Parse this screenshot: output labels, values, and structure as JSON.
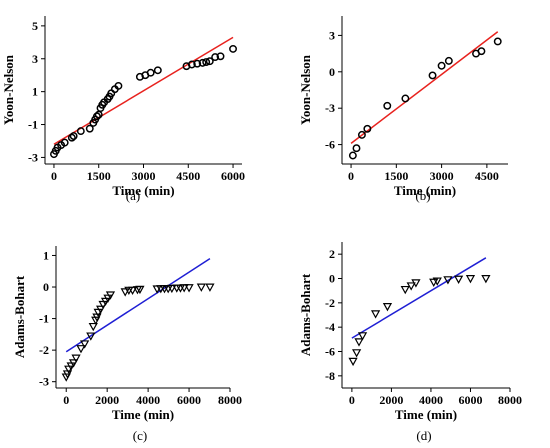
{
  "chart_data": [
    {
      "panel_label": "(a)",
      "type": "scatter",
      "xlabel": "Time (min)",
      "ylabel": "Yoon-Nelson",
      "xlim": [
        -300,
        6300
      ],
      "ylim": [
        -3.4,
        5.6
      ],
      "xticks": [
        0,
        1500,
        3000,
        4500,
        6000
      ],
      "yticks": [
        -3,
        -1,
        1,
        3,
        5
      ],
      "marker": "circle",
      "fit_color": "#e8221e",
      "series": [
        {
          "x": [
            0,
            60,
            120,
            240,
            360,
            600,
            660,
            900,
            1200,
            1320,
            1380,
            1440,
            1500,
            1560,
            1620,
            1680,
            1800,
            1860,
            1920,
            2040,
            2160,
            2880,
            3060,
            3240,
            3480,
            4440,
            4620,
            4800,
            4980,
            5100,
            5220,
            5400,
            5580,
            6000
          ],
          "y": [
            -2.8,
            -2.6,
            -2.4,
            -2.25,
            -2.1,
            -1.8,
            -1.7,
            -1.4,
            -1.25,
            -0.9,
            -0.7,
            -0.5,
            -0.4,
            0.0,
            0.2,
            0.35,
            0.55,
            0.7,
            0.9,
            1.15,
            1.35,
            1.9,
            2.0,
            2.15,
            2.3,
            2.55,
            2.65,
            2.7,
            2.75,
            2.8,
            2.85,
            3.1,
            3.15,
            3.6
          ]
        }
      ],
      "fit": {
        "x": [
          0,
          6000
        ],
        "y": [
          -2.2,
          4.3
        ]
      }
    },
    {
      "panel_label": "(b)",
      "type": "scatter",
      "xlabel": "Time (min)",
      "ylabel": "Yoon-Nelson",
      "xlim": [
        -300,
        5200
      ],
      "ylim": [
        -7.6,
        4.6
      ],
      "xticks": [
        0,
        1500,
        3000,
        4500
      ],
      "yticks": [
        -6,
        -3,
        0,
        3
      ],
      "marker": "circle",
      "fit_color": "#e8221e",
      "series": [
        {
          "x": [
            60,
            180,
            360,
            540,
            1200,
            1800,
            2700,
            3000,
            3240,
            4140,
            4320,
            4860
          ],
          "y": [
            -6.9,
            -6.3,
            -5.2,
            -4.7,
            -2.8,
            -2.2,
            -0.3,
            0.5,
            0.9,
            1.5,
            1.7,
            2.5
          ]
        }
      ],
      "fit": {
        "x": [
          0,
          4860
        ],
        "y": [
          -5.9,
          3.3
        ]
      }
    },
    {
      "panel_label": "(c)",
      "type": "scatter",
      "xlabel": "Time (min)",
      "ylabel": "Adams-Bohart",
      "xlim": [
        -500,
        8000
      ],
      "ylim": [
        -3.2,
        1.3
      ],
      "xticks": [
        0,
        2000,
        4000,
        6000,
        8000
      ],
      "yticks": [
        -3,
        -2,
        -1,
        0,
        1
      ],
      "marker": "triangle-down",
      "fit_color": "#1f1fd4",
      "series": [
        {
          "x": [
            0,
            60,
            120,
            240,
            360,
            480,
            720,
            900,
            1200,
            1320,
            1440,
            1500,
            1560,
            1680,
            1800,
            1920,
            2040,
            2160,
            2880,
            3060,
            3240,
            3480,
            3600,
            4440,
            4620,
            4800,
            4980,
            5160,
            5400,
            5580,
            5760,
            6000,
            6600,
            7020
          ],
          "y": [
            -2.85,
            -2.75,
            -2.6,
            -2.5,
            -2.4,
            -2.25,
            -1.95,
            -1.8,
            -1.55,
            -1.25,
            -1.05,
            -0.95,
            -0.8,
            -0.7,
            -0.55,
            -0.45,
            -0.35,
            -0.25,
            -0.15,
            -0.1,
            -0.1,
            -0.08,
            -0.07,
            -0.06,
            -0.05,
            -0.05,
            -0.05,
            -0.04,
            -0.03,
            -0.03,
            -0.02,
            -0.02,
            0.0,
            0.0
          ]
        }
      ],
      "fit": {
        "x": [
          0,
          7020
        ],
        "y": [
          -2.05,
          0.9
        ]
      }
    },
    {
      "panel_label": "(d)",
      "type": "scatter",
      "xlabel": "Time (min)",
      "ylabel": "Adams-Bohart",
      "xlim": [
        -500,
        8000
      ],
      "ylim": [
        -9,
        3
      ],
      "xticks": [
        0,
        2000,
        4000,
        6000,
        8000
      ],
      "yticks": [
        -8,
        -6,
        -4,
        -2,
        0,
        2
      ],
      "marker": "triangle-down",
      "fit_color": "#1f1fd4",
      "series": [
        {
          "x": [
            60,
            240,
            360,
            540,
            1200,
            1800,
            2700,
            3000,
            3240,
            4140,
            4320,
            4860,
            5400,
            6000,
            6780
          ],
          "y": [
            -6.8,
            -6.1,
            -5.2,
            -4.7,
            -2.9,
            -2.3,
            -0.9,
            -0.6,
            -0.35,
            -0.3,
            -0.2,
            -0.1,
            -0.05,
            0.0,
            0.0
          ]
        }
      ],
      "fit": {
        "x": [
          0,
          6780
        ],
        "y": [
          -4.9,
          1.7
        ]
      }
    }
  ]
}
